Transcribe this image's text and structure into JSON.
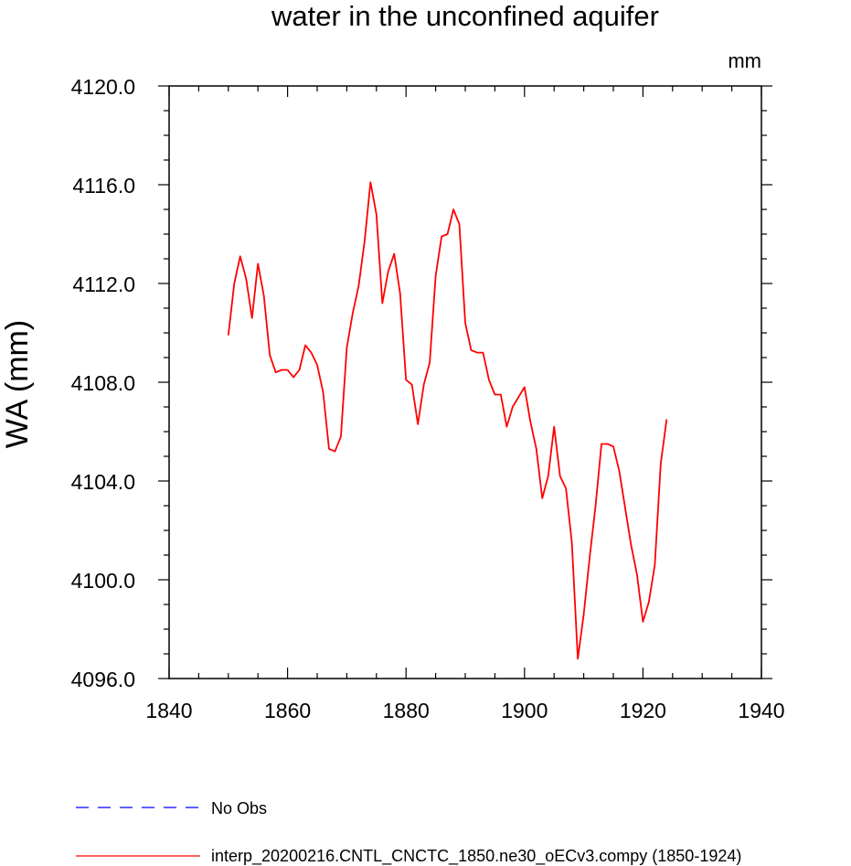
{
  "chart_data": {
    "type": "line",
    "title": "water in the unconfined aquifer",
    "units": "mm",
    "xlabel": "",
    "ylabel": "WA  (mm)",
    "xlim": [
      1840,
      1940
    ],
    "ylim": [
      4096.0,
      4120.0
    ],
    "xticks": [
      1840,
      1860,
      1880,
      1900,
      1920,
      1940
    ],
    "yticks": [
      "4096.0",
      "4100.0",
      "4104.0",
      "4108.0",
      "4112.0",
      "4116.0",
      "4120.0"
    ],
    "grid": false,
    "legend": {
      "position": "bottom",
      "entries": [
        {
          "label": "No Obs",
          "color": "#0000ff",
          "style": "dashed"
        },
        {
          "label": "interp_20200216.CNTL_CNCTC_1850.ne30_oECv3.compy (1850-1924)",
          "color": "#ff0000",
          "style": "solid"
        }
      ]
    },
    "series": [
      {
        "name": "interp_20200216.CNTL_CNCTC_1850.ne30_oECv3.compy (1850-1924)",
        "color": "#ff0000",
        "x": [
          1850,
          1851,
          1852,
          1853,
          1854,
          1855,
          1856,
          1857,
          1858,
          1859,
          1860,
          1861,
          1862,
          1863,
          1864,
          1865,
          1866,
          1867,
          1868,
          1869,
          1870,
          1871,
          1872,
          1873,
          1874,
          1875,
          1876,
          1877,
          1878,
          1879,
          1880,
          1881,
          1882,
          1883,
          1884,
          1885,
          1886,
          1887,
          1888,
          1889,
          1890,
          1891,
          1892,
          1893,
          1894,
          1895,
          1896,
          1897,
          1898,
          1899,
          1900,
          1901,
          1902,
          1903,
          1904,
          1905,
          1906,
          1907,
          1908,
          1909,
          1910,
          1911,
          1912,
          1913,
          1914,
          1915,
          1916,
          1917,
          1918,
          1919,
          1920,
          1921,
          1922,
          1923,
          1924
        ],
        "values": [
          4109.9,
          4112.0,
          4113.1,
          4112.2,
          4110.6,
          4112.8,
          4111.5,
          4109.1,
          4108.4,
          4108.5,
          4108.5,
          4108.2,
          4108.5,
          4109.5,
          4109.2,
          4108.7,
          4107.6,
          4105.3,
          4105.2,
          4105.8,
          4109.4,
          4110.8,
          4111.9,
          4113.7,
          4116.1,
          4114.8,
          4111.2,
          4112.5,
          4113.2,
          4111.6,
          4108.1,
          4107.9,
          4106.3,
          4107.9,
          4108.8,
          4112.3,
          4113.9,
          4114.0,
          4115.0,
          4114.4,
          4110.4,
          4109.3,
          4109.2,
          4109.2,
          4108.1,
          4107.5,
          4107.5,
          4106.2,
          4107.0,
          4107.4,
          4107.8,
          4106.4,
          4105.3,
          4103.3,
          4104.2,
          4106.2,
          4104.2,
          4103.7,
          4101.5,
          4096.8,
          4098.6,
          4100.9,
          4103.0,
          4105.5,
          4105.5,
          4105.4,
          4104.4,
          4102.9,
          4101.4,
          4100.2,
          4098.3,
          4099.1,
          4100.6,
          4104.7,
          4106.5
        ]
      }
    ]
  }
}
